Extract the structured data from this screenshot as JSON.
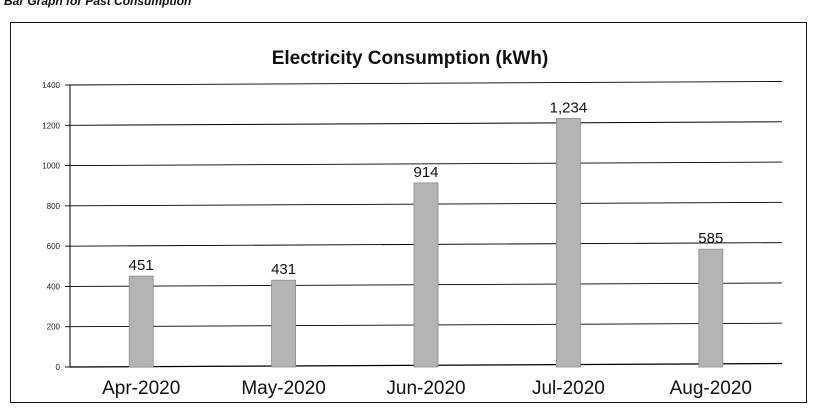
{
  "caption": "Bar Graph for Past Consumption",
  "chart_data": {
    "type": "bar",
    "title": "Electricity Consumption (kWh)",
    "xlabel": "",
    "ylabel": "",
    "categories": [
      "Apr-2020",
      "May-2020",
      "Jun-2020",
      "Jul-2020",
      "Aug-2020"
    ],
    "values": [
      451,
      431,
      914,
      1234,
      585
    ],
    "data_labels": [
      "451",
      "431",
      "914",
      "1,234",
      "585"
    ],
    "ylim": [
      0,
      1400
    ],
    "yticks": [
      0,
      200,
      400,
      600,
      800,
      1000,
      1200,
      1400
    ],
    "grid": true,
    "legend": "none",
    "colors": {
      "bar": "#b4b4b4",
      "bar_edge": "#8c8c8c",
      "grid": "#000000",
      "axis": "#000000"
    }
  }
}
